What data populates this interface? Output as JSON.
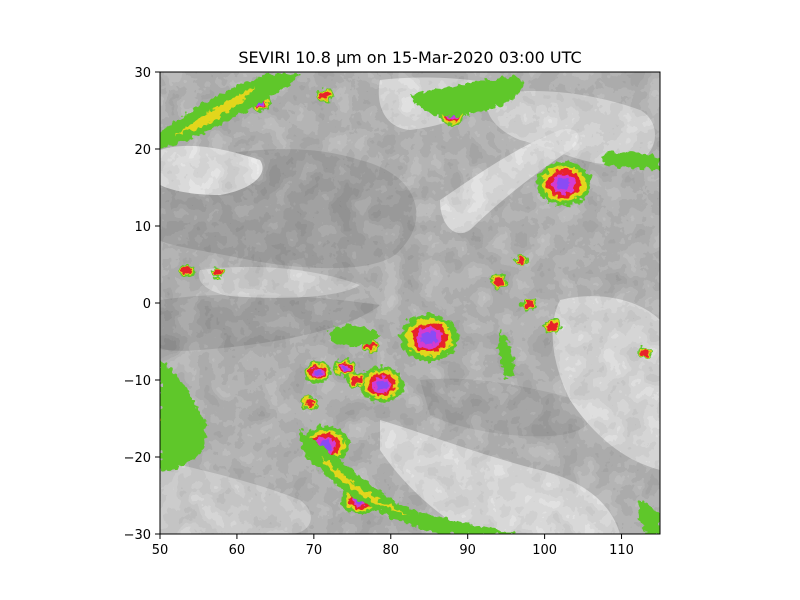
{
  "title": "SEVIRI 10.8 μm on 15-Mar-2020 03:00 UTC",
  "map": {
    "type": "satellite-brightness-temperature",
    "channel": "SEVIRI 10.8 μm",
    "xlim": [
      50,
      115
    ],
    "ylim": [
      -30,
      30
    ],
    "x_ticks": [
      50,
      60,
      70,
      80,
      90,
      100,
      110
    ],
    "y_ticks": [
      30,
      20,
      10,
      0,
      -10,
      -20,
      -30
    ],
    "x_tick_labels": [
      "50",
      "60",
      "70",
      "80",
      "90",
      "100",
      "110"
    ],
    "y_tick_labels": [
      "30",
      "20",
      "10",
      "0",
      "−10",
      "−20",
      "−30"
    ],
    "colors": {
      "background_gray": "#7a7a7a",
      "dark_gray": "#555555",
      "light_gray": "#c8c8c8",
      "white_cloud": "#f2f2f2",
      "green": "#5ec72a",
      "yellow": "#e3d61a",
      "red": "#e8202a",
      "magenta": "#d43ad1",
      "purple": "#8a4cf5"
    },
    "convective_cells": [
      {
        "lon": 52.5,
        "lat": -16,
        "r": 3.2
      },
      {
        "lon": 78.8,
        "lat": -10.6,
        "r": 2.6
      },
      {
        "lon": 71.5,
        "lat": -18.5,
        "r": 2.8
      },
      {
        "lon": 85,
        "lat": -4.5,
        "r": 3.4
      },
      {
        "lon": 102.5,
        "lat": 15.5,
        "r": 3.2
      },
      {
        "lon": 88,
        "lat": 24.5,
        "r": 1.6
      },
      {
        "lon": 76,
        "lat": -25.5,
        "r": 2.2
      },
      {
        "lon": 70.5,
        "lat": -9,
        "r": 1.6
      },
      {
        "lon": 74,
        "lat": -8.5,
        "r": 1.3
      },
      {
        "lon": 75.5,
        "lat": -10,
        "r": 1.1
      },
      {
        "lon": 69.5,
        "lat": -13,
        "r": 1.0
      },
      {
        "lon": 77.5,
        "lat": -5.5,
        "r": 1.0
      },
      {
        "lon": 101,
        "lat": -3,
        "r": 1.0
      },
      {
        "lon": 98,
        "lat": -0.2,
        "r": 1.0
      },
      {
        "lon": 94,
        "lat": 2.8,
        "r": 1.0
      },
      {
        "lon": 97,
        "lat": 5.6,
        "r": 0.8
      },
      {
        "lon": 53.5,
        "lat": 4.2,
        "r": 0.9
      },
      {
        "lon": 57.5,
        "lat": 4,
        "r": 0.8
      },
      {
        "lon": 63,
        "lat": 26,
        "r": 1.2
      },
      {
        "lon": 71.5,
        "lat": 27,
        "r": 1.0
      },
      {
        "lon": 113,
        "lat": -6.5,
        "r": 0.8
      },
      {
        "lon": 113,
        "lat": 18.5,
        "r": 0.7
      }
    ]
  }
}
